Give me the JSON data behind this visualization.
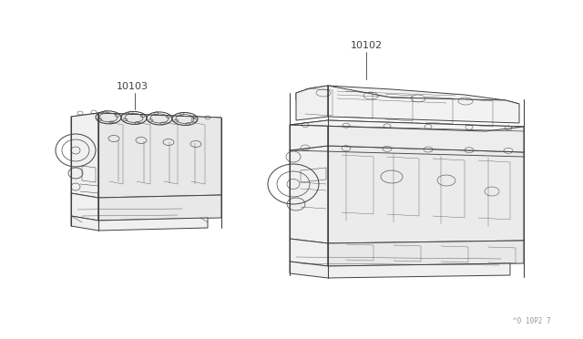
{
  "background_color": "#ffffff",
  "line_color": "#404040",
  "label_color": "#404040",
  "label_10103": "10103",
  "label_10102": "10102",
  "watermark": "^0 10P2 7",
  "lw": 0.7,
  "figsize": [
    6.4,
    3.72
  ],
  "dpi": 100
}
